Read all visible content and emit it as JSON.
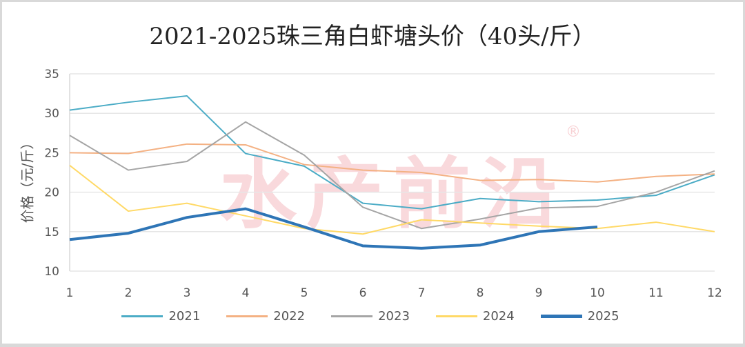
{
  "chart_data": {
    "type": "line",
    "title": "2021-2025珠三角白虾塘头价（40头/斤）",
    "xlabel": "",
    "ylabel": "价格（元/斤）",
    "categories": [
      "1",
      "2",
      "3",
      "4",
      "5",
      "6",
      "7",
      "8",
      "9",
      "10",
      "11",
      "12"
    ],
    "yticks": [
      "10",
      "15",
      "20",
      "25",
      "30",
      "35"
    ],
    "ylim": [
      10,
      35
    ],
    "grid": true,
    "legend_position": "bottom",
    "series": [
      {
        "name": "2021",
        "color": "#4bacc6",
        "width": 2,
        "values": [
          30.4,
          31.4,
          32.2,
          24.9,
          23.3,
          18.6,
          17.9,
          19.2,
          18.8,
          19.0,
          19.6,
          22.2
        ]
      },
      {
        "name": "2022",
        "color": "#f4b183",
        "width": 2,
        "values": [
          25.0,
          24.9,
          26.1,
          26.0,
          23.5,
          22.8,
          22.5,
          21.5,
          21.6,
          21.3,
          22.0,
          22.3
        ]
      },
      {
        "name": "2023",
        "color": "#a5a5a5",
        "width": 2,
        "values": [
          27.2,
          22.8,
          23.9,
          28.9,
          24.7,
          18.1,
          15.4,
          16.6,
          18.0,
          18.2,
          20.0,
          22.7
        ]
      },
      {
        "name": "2024",
        "color": "#ffd966",
        "width": 2,
        "values": [
          23.4,
          17.6,
          18.6,
          17.0,
          15.4,
          14.7,
          16.5,
          16.1,
          15.7,
          15.4,
          16.2,
          15.0
        ]
      },
      {
        "name": "2025",
        "color": "#2e75b6",
        "width": 4,
        "values": [
          14.0,
          14.8,
          16.8,
          17.9,
          15.6,
          13.2,
          12.9,
          13.3,
          15.0,
          15.6
        ]
      }
    ]
  },
  "watermark": {
    "text": "水产前沿",
    "registered": "®"
  }
}
